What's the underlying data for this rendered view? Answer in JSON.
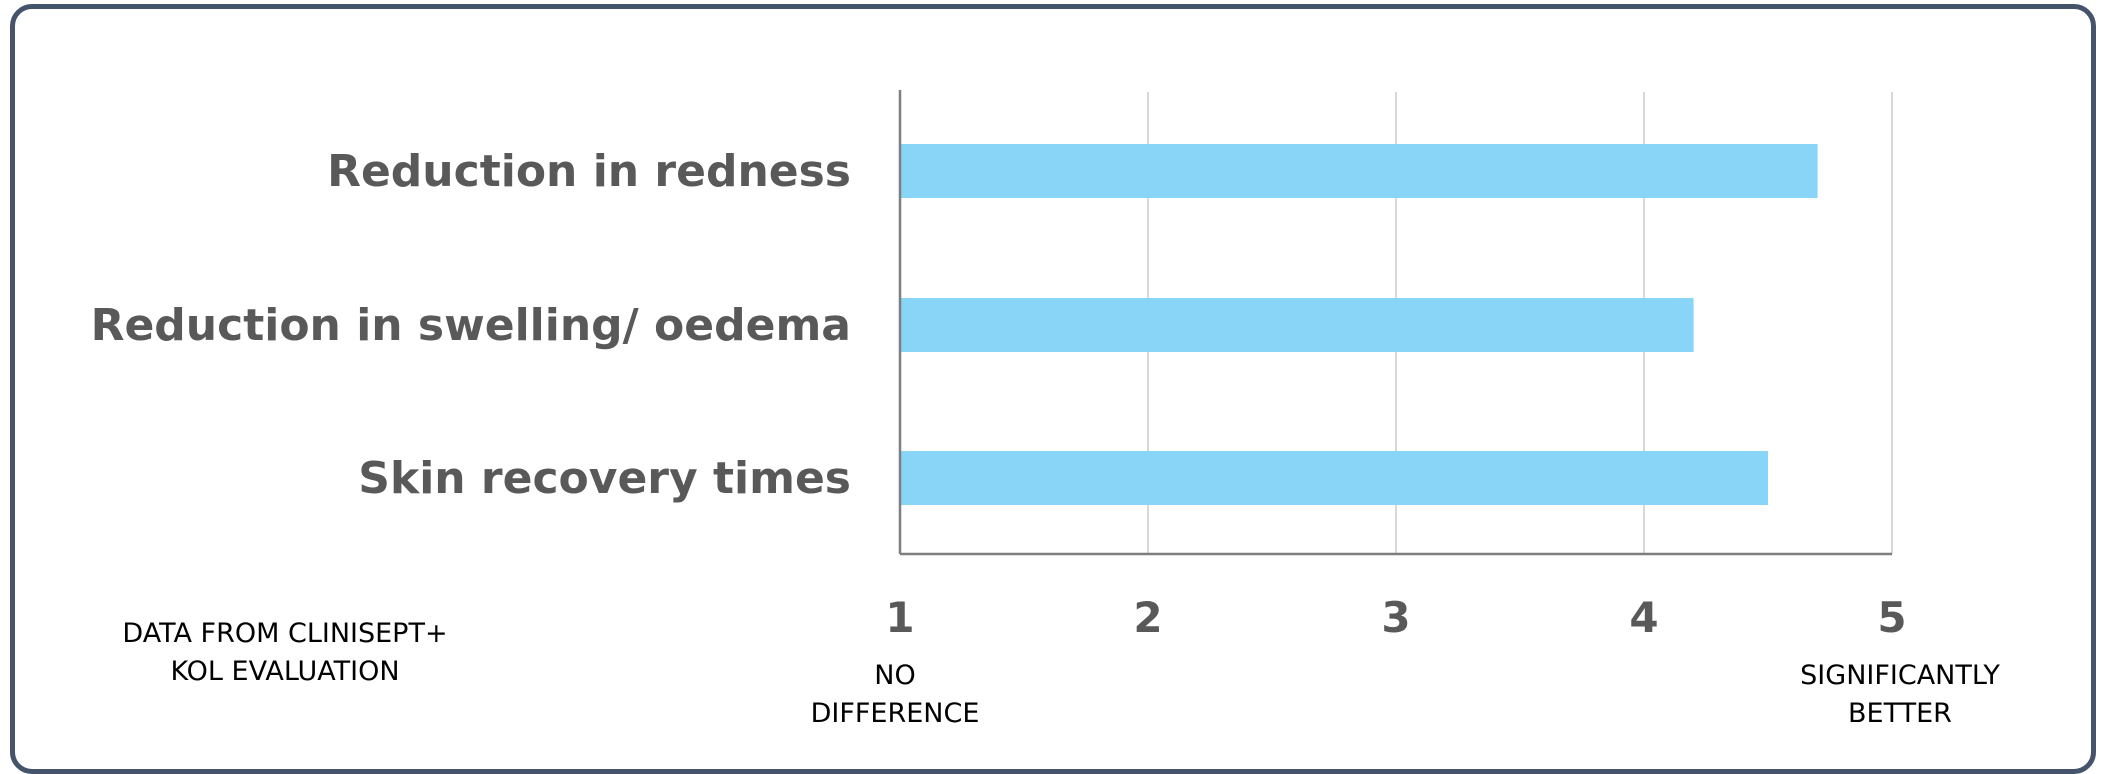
{
  "chart_data": {
    "type": "bar",
    "orientation": "horizontal",
    "categories": [
      "Reduction in redness",
      "Reduction in swelling/ oedema",
      "Skin recovery times"
    ],
    "values": [
      4.7,
      4.2,
      4.5
    ],
    "xlim": [
      1,
      5
    ],
    "xticks": [
      "1",
      "2",
      "3",
      "4",
      "5"
    ],
    "grid": true,
    "bar_color": "#89d5f7",
    "label_color": "#595959"
  },
  "annotations": {
    "source_line1": "DATA FROM CLINISEPT+",
    "source_line2": "KOL EVALUATION",
    "low_line1": "NO",
    "low_line2": "DIFFERENCE",
    "high_line1": "SIGNIFICANTLY",
    "high_line2": "BETTER"
  },
  "colors": {
    "frame": "#44546a",
    "grid": "#d9d9d9",
    "axis": "#7f7f7f"
  }
}
